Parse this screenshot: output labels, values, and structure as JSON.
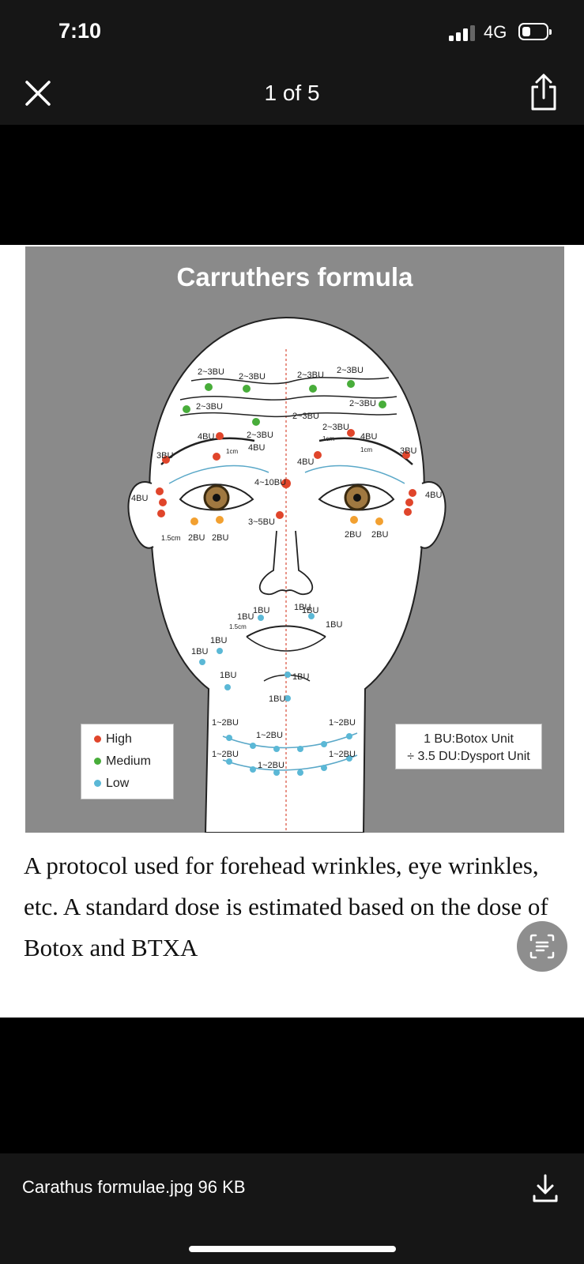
{
  "status": {
    "time": "7:10",
    "network": "4G"
  },
  "header": {
    "counter": "1 of 5"
  },
  "figure": {
    "title": "Carruthers formula",
    "labels": {
      "fh1": "2~3BU",
      "fh2": "2~3BU",
      "fh3": "2~3BU",
      "fh4": "2~3BU",
      "fh5": "2~3BU",
      "fh6": "2~3BU",
      "fh7": "2~3BU",
      "g1": "4BU",
      "g2": "2~3BU",
      "g3": "4BU",
      "g4": "1cm",
      "g5": "2~3BU",
      "g6": "1cm",
      "g7": "4BU",
      "g8": "4BU",
      "g9": "1cm",
      "t1": "3BU",
      "t2": "3BU",
      "e1": "4BU",
      "e2": "4BU",
      "n1": "4~10BU",
      "n2": "3~5BU",
      "u1": "1.5cm",
      "u2": "2BU",
      "u3": "2BU",
      "u4": "2BU",
      "u5": "2BU",
      "m1": "1BU",
      "m2": "1BU",
      "m3": "1.5cm",
      "m4": "1BU",
      "m5": "1BU",
      "m6": "1BU",
      "m7": "1BU",
      "m8": "1BU",
      "m9": "1BU",
      "m10": "1BU",
      "m11": "1BU",
      "k1": "1~2BU",
      "k2": "1~2BU",
      "k3": "1~2BU",
      "k4": "1~2BU",
      "k5": "1~2BU",
      "k6": "1~2BU"
    },
    "legend": {
      "high": "High",
      "medium": "Medium",
      "low": "Low"
    },
    "units": {
      "line1": "1 BU:Botox Unit",
      "line2": "÷ 3.5 DU:Dysport Unit"
    },
    "colors": {
      "high": "#e0452b",
      "medium": "#48ad3a",
      "low": "#5bb8d6",
      "orange": "#f2a030"
    }
  },
  "caption": "A protocol used for forehead wrinkles, eye wrinkles, etc. A standard dose is estimated based on the dose of Botox and BTXA",
  "footer": {
    "file_info": "Carathus formulae.jpg 96 KB"
  },
  "icons": {
    "close": "close-icon",
    "share": "share-icon",
    "download": "download-icon",
    "lens": "text-scan-icon"
  }
}
